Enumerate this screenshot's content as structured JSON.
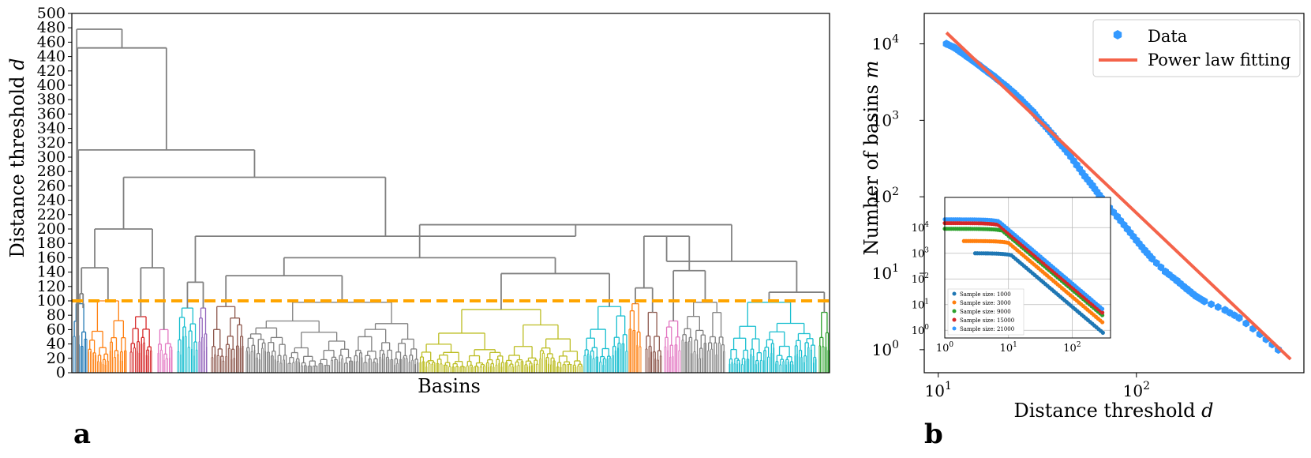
{
  "panel_labels": {
    "a": "a",
    "b": "b"
  },
  "chart_data": [
    {
      "type": "dendrogram",
      "title": "",
      "xlabel": "Basins",
      "ylabel": "Distance threshold d",
      "ylabel_main": "Distance threshold ",
      "ylabel_var": "d",
      "ylim": [
        0,
        500
      ],
      "yticks": [
        "0",
        "20",
        "40",
        "60",
        "80",
        "100",
        "120",
        "140",
        "160",
        "180",
        "200",
        "220",
        "240",
        "260",
        "280",
        "300",
        "320",
        "340",
        "360",
        "380",
        "400",
        "420",
        "440",
        "460",
        "480",
        "500"
      ],
      "cut_threshold": 100,
      "cut_color": "#ffa500",
      "link_color": "#808080",
      "top_merges": [
        {
          "height": 478
        },
        {
          "height": 452
        },
        {
          "height": 310
        },
        {
          "height": 272
        },
        {
          "height": 206
        },
        {
          "height": 200
        },
        {
          "height": 190
        }
      ],
      "clusters": [
        {
          "color": "#1f77b4",
          "max_height": 96
        },
        {
          "color": "#ff7f0e",
          "max_height": 100
        },
        {
          "color": "#d62728",
          "max_height": 78
        },
        {
          "color": "#e377c2",
          "max_height": 60
        },
        {
          "color": "#17becf",
          "max_height": 90
        },
        {
          "color": "#9467bd",
          "max_height": 90
        },
        {
          "color": "#8c564b",
          "max_height": 92
        },
        {
          "color": "#7f7f7f",
          "max_height": 98
        },
        {
          "color": "#bcbd22",
          "max_height": 88
        },
        {
          "color": "#17becf",
          "max_height": 92
        },
        {
          "color": "#ff7f0e",
          "max_height": 96
        },
        {
          "color": "#8c564b",
          "max_height": 84
        },
        {
          "color": "#e377c2",
          "max_height": 72
        },
        {
          "color": "#7f7f7f",
          "max_height": 98
        },
        {
          "color": "#17becf",
          "max_height": 98
        },
        {
          "color": "#2ca02c",
          "max_height": 84
        }
      ]
    },
    {
      "type": "scatter",
      "scale": "log-log",
      "xlabel": "Distance threshold d",
      "xlabel_main": "Distance threshold ",
      "xlabel_var": "d",
      "ylabel": "Number of basins m",
      "ylabel_main": "Number of basins ",
      "ylabel_var": "m",
      "xlim": [
        8.5,
        700
      ],
      "ylim": [
        0.5,
        25000
      ],
      "xticks": [
        {
          "base": "10",
          "exp": "1",
          "value": 10
        },
        {
          "base": "10",
          "exp": "2",
          "value": 100
        }
      ],
      "yticks": [
        {
          "base": "10",
          "exp": "0",
          "value": 1
        },
        {
          "base": "10",
          "exp": "1",
          "value": 10
        },
        {
          "base": "10",
          "exp": "2",
          "value": 100
        },
        {
          "base": "10",
          "exp": "3",
          "value": 1000
        },
        {
          "base": "10",
          "exp": "4",
          "value": 10000
        }
      ],
      "legend": [
        {
          "label": "Data",
          "color": "#3399ff",
          "marker": "hexagon"
        },
        {
          "label": "Power law fitting",
          "color": "#f4634a",
          "marker": "line"
        }
      ],
      "legend_position": "top-right",
      "series": [
        {
          "name": "Data",
          "color": "#3399ff",
          "x": [
            11,
            12,
            13,
            14,
            15,
            16,
            17,
            18,
            19,
            20,
            22,
            24,
            26,
            28,
            30,
            32,
            35,
            38,
            41,
            45,
            50,
            55,
            60,
            65,
            70,
            80,
            90,
            100,
            110,
            120,
            140,
            160,
            180,
            200,
            220,
            280,
            330,
            420,
            520
          ],
          "y": [
            10000,
            9000,
            7800,
            6800,
            6000,
            5300,
            4700,
            4200,
            3800,
            3400,
            2800,
            2300,
            1900,
            1550,
            1300,
            1050,
            820,
            640,
            500,
            380,
            260,
            185,
            140,
            105,
            82,
            55,
            38,
            27,
            20,
            15.5,
            10.5,
            8,
            6.2,
            5,
            4.3,
            3.3,
            2.6,
            1.6,
            1
          ]
        },
        {
          "name": "Power law fitting",
          "color": "#f4634a",
          "type": "line",
          "x": [
            11,
            600
          ],
          "y": [
            14000,
            0.75
          ]
        }
      ]
    },
    {
      "type": "scatter",
      "role": "inset",
      "scale": "log-log",
      "xlim": [
        1,
        400
      ],
      "ylim": [
        0.5,
        150000
      ],
      "xticks": [
        {
          "base": "10",
          "exp": "0",
          "value": 1
        },
        {
          "base": "10",
          "exp": "1",
          "value": 10
        },
        {
          "base": "10",
          "exp": "2",
          "value": 100
        }
      ],
      "yticks": [
        {
          "base": "10",
          "exp": "0",
          "value": 1
        },
        {
          "base": "10",
          "exp": "1",
          "value": 10
        },
        {
          "base": "10",
          "exp": "2",
          "value": 100
        },
        {
          "base": "10",
          "exp": "3",
          "value": 1000
        },
        {
          "base": "10",
          "exp": "4",
          "value": 10000
        }
      ],
      "grid": true,
      "legend_position": "bottom-left",
      "series": [
        {
          "name": "Sample size: 1000",
          "color": "#1f77b4",
          "plateau": 1000,
          "plateau_start": 3,
          "decay_start": 11,
          "slope": 2.1
        },
        {
          "name": "Sample size: 3000",
          "color": "#ff7f0e",
          "plateau": 3000,
          "plateau_start": 2,
          "decay_start": 10,
          "slope": 2.1
        },
        {
          "name": "Sample size: 9000",
          "color": "#2ca02c",
          "plateau": 9000,
          "plateau_start": 1,
          "decay_start": 8,
          "slope": 2.1
        },
        {
          "name": "Sample size: 15000",
          "color": "#d62728",
          "plateau": 15000,
          "plateau_start": 1,
          "decay_start": 7,
          "slope": 2.1
        },
        {
          "name": "Sample size: 21000",
          "color": "#3399ff",
          "plateau": 21000,
          "plateau_start": 1,
          "decay_start": 7,
          "slope": 2.1
        }
      ]
    }
  ]
}
